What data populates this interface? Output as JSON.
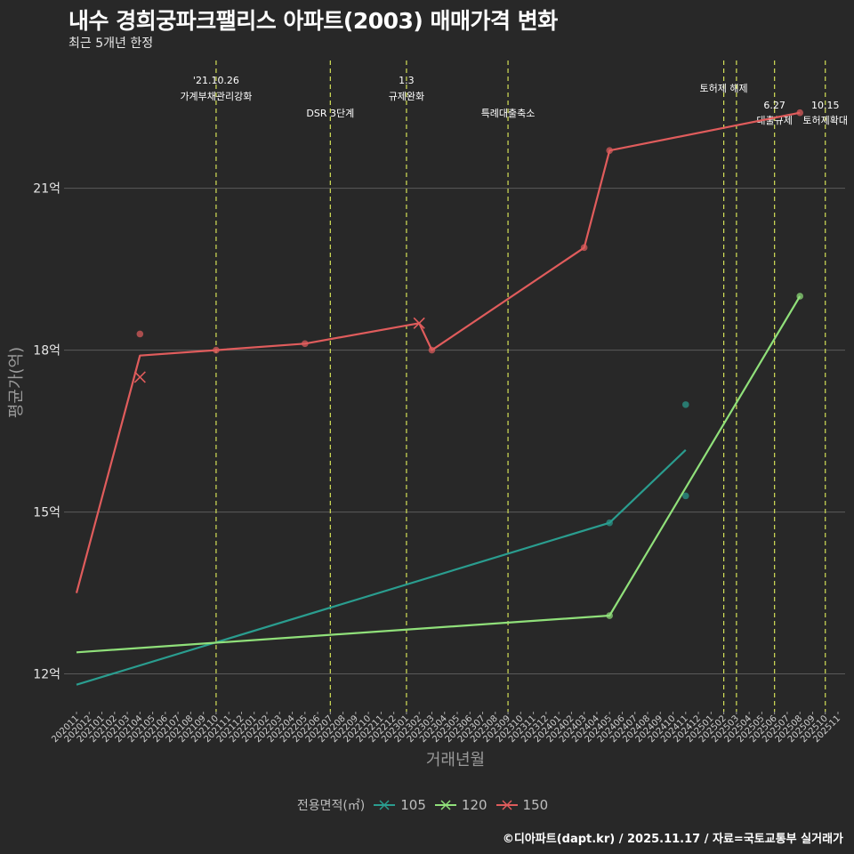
{
  "header": {
    "title": "내수 경희궁파크팰리스 아파트(2003) 매매가격 변화",
    "subtitle": "최근 5개년 한정"
  },
  "caption": "©디아파트(dapt.kr) / 2025.11.17 / 자료=국토교통부 실거래가",
  "colors": {
    "background": "#282828",
    "grid": "#5a5a5a",
    "event_line": "#d4e157",
    "s105": "#2a9d8f",
    "s120": "#90e07a",
    "s150": "#e05c5c"
  },
  "chart_data": {
    "type": "line",
    "title": "내수 경희궁파크팰리스 아파트(2003) 매매가격 변화",
    "xlabel": "거래년월",
    "ylabel": "평균가(억)",
    "ylim": [
      11.3,
      23.5
    ],
    "yticks": [
      12,
      15,
      18,
      21
    ],
    "ytick_labels": [
      "12억",
      "15억",
      "18억",
      "21억"
    ],
    "x_categories": [
      "202011",
      "202012",
      "202101",
      "202102",
      "202103",
      "202104",
      "202105",
      "202106",
      "202107",
      "202108",
      "202109",
      "202110",
      "202111",
      "202112",
      "202201",
      "202202",
      "202203",
      "202204",
      "202205",
      "202206",
      "202207",
      "202208",
      "202209",
      "202210",
      "202211",
      "202212",
      "202301",
      "202302",
      "202303",
      "202304",
      "202305",
      "202306",
      "202307",
      "202308",
      "202309",
      "202310",
      "202311",
      "202312",
      "202401",
      "202402",
      "202403",
      "202404",
      "202405",
      "202406",
      "202407",
      "202408",
      "202409",
      "202410",
      "202411",
      "202412",
      "202501",
      "202502",
      "202503",
      "202504",
      "202505",
      "202506",
      "202507",
      "202508",
      "202509",
      "202510",
      "202511"
    ],
    "grid": true,
    "legend": {
      "title": "전용면적(㎡)",
      "position": "bottom",
      "entries": [
        "105",
        "120",
        "150"
      ]
    },
    "events": [
      {
        "x": "202110",
        "date": "'21.10.26",
        "label": "가계부채관리강화",
        "row": "high"
      },
      {
        "x": "202207",
        "date": "",
        "label": "DSR 3단계",
        "row": "low"
      },
      {
        "x": "202301",
        "date": "1.3",
        "label": "규제완화",
        "row": "high"
      },
      {
        "x": "202309",
        "date": "",
        "label": "특례대출축소",
        "row": "low"
      },
      {
        "x": "202502",
        "date": "",
        "label": "토허제 해제",
        "row": "top"
      },
      {
        "x": "202503",
        "date": "",
        "label": "",
        "row": "none"
      },
      {
        "x": "202506",
        "date": "6.27",
        "label": "대출규제",
        "row": "low"
      },
      {
        "x": "202510",
        "date": "10.15",
        "label": "토허제확대",
        "row": "low"
      }
    ],
    "series": [
      {
        "name": "105",
        "line": [
          [
            "202011",
            11.8
          ],
          [
            "202405",
            14.8
          ],
          [
            "202411",
            16.15
          ]
        ],
        "points": [
          [
            "202405",
            14.8
          ],
          [
            "202411",
            16.99
          ],
          [
            "202411",
            15.3
          ]
        ],
        "cancelled": []
      },
      {
        "name": "120",
        "line": [
          [
            "202011",
            12.4
          ],
          [
            "202405",
            13.08
          ],
          [
            "202508",
            19.0
          ]
        ],
        "points": [
          [
            "202405",
            13.08
          ],
          [
            "202508",
            19.0
          ]
        ],
        "cancelled": []
      },
      {
        "name": "150",
        "line": [
          [
            "202011",
            13.5
          ],
          [
            "202104",
            17.9
          ],
          [
            "202110",
            18.0
          ],
          [
            "202205",
            18.12
          ],
          [
            "202302",
            18.5
          ],
          [
            "202303",
            18.0
          ],
          [
            "202403",
            19.9
          ],
          [
            "202405",
            21.7
          ],
          [
            "202508",
            22.4
          ]
        ],
        "points": [
          [
            "202104",
            18.3
          ],
          [
            "202110",
            18.0
          ],
          [
            "202205",
            18.12
          ],
          [
            "202303",
            18.0
          ],
          [
            "202403",
            19.9
          ],
          [
            "202405",
            21.7
          ],
          [
            "202508",
            22.4
          ]
        ],
        "cancelled": [
          [
            "202104",
            17.5
          ],
          [
            "202302",
            18.5
          ]
        ]
      }
    ]
  }
}
